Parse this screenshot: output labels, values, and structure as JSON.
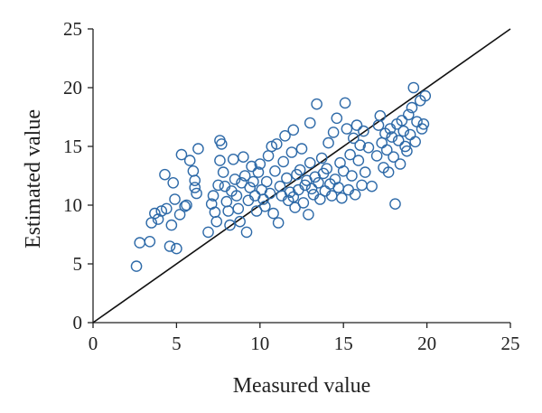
{
  "chart_data": {
    "type": "scatter",
    "title": "",
    "xlabel": "Measured value",
    "ylabel": "Estimated value",
    "xlim": [
      0,
      25
    ],
    "ylim": [
      0,
      25
    ],
    "x_ticks": [
      "0",
      "5",
      "10",
      "15",
      "20",
      "25"
    ],
    "y_ticks": [
      "0",
      "5",
      "10",
      "15",
      "20",
      "25"
    ],
    "grid": false,
    "legend": "none",
    "marker_color": "#2e6aa8",
    "reference_line": {
      "label": "",
      "from": [
        0,
        0
      ],
      "to": [
        25,
        25
      ],
      "color": "#111111"
    },
    "series": [
      {
        "name": "",
        "points": [
          [
            2.6,
            4.8
          ],
          [
            2.8,
            6.8
          ],
          [
            3.4,
            6.9
          ],
          [
            3.5,
            8.5
          ],
          [
            3.7,
            9.3
          ],
          [
            3.9,
            8.8
          ],
          [
            4.1,
            9.5
          ],
          [
            4.3,
            12.6
          ],
          [
            4.4,
            9.7
          ],
          [
            4.6,
            6.5
          ],
          [
            4.7,
            8.3
          ],
          [
            4.8,
            11.9
          ],
          [
            4.9,
            10.5
          ],
          [
            5.0,
            6.3
          ],
          [
            5.2,
            9.2
          ],
          [
            5.3,
            14.3
          ],
          [
            5.5,
            9.9
          ],
          [
            5.6,
            10.0
          ],
          [
            5.8,
            13.8
          ],
          [
            6.0,
            12.9
          ],
          [
            6.1,
            12.1
          ],
          [
            6.1,
            11.5
          ],
          [
            6.2,
            11.0
          ],
          [
            6.3,
            14.8
          ],
          [
            6.9,
            7.7
          ],
          [
            7.1,
            10.1
          ],
          [
            7.2,
            10.8
          ],
          [
            7.3,
            9.4
          ],
          [
            7.4,
            8.6
          ],
          [
            7.5,
            11.7
          ],
          [
            7.6,
            13.8
          ],
          [
            7.6,
            15.5
          ],
          [
            7.7,
            15.2
          ],
          [
            7.8,
            12.8
          ],
          [
            7.9,
            11.6
          ],
          [
            8.0,
            10.3
          ],
          [
            8.1,
            9.5
          ],
          [
            8.2,
            8.3
          ],
          [
            8.3,
            11.2
          ],
          [
            8.4,
            13.9
          ],
          [
            8.5,
            12.2
          ],
          [
            8.6,
            10.8
          ],
          [
            8.7,
            9.7
          ],
          [
            8.8,
            8.6
          ],
          [
            8.9,
            11.9
          ],
          [
            9.0,
            14.1
          ],
          [
            9.1,
            12.5
          ],
          [
            9.2,
            7.7
          ],
          [
            9.3,
            10.4
          ],
          [
            9.4,
            11.5
          ],
          [
            9.5,
            13.3
          ],
          [
            9.6,
            12.0
          ],
          [
            9.7,
            10.8
          ],
          [
            9.8,
            9.5
          ],
          [
            9.9,
            12.8
          ],
          [
            10.0,
            13.5
          ],
          [
            10.1,
            11.3
          ],
          [
            10.2,
            10.5
          ],
          [
            10.3,
            9.9
          ],
          [
            10.4,
            12.0
          ],
          [
            10.5,
            14.2
          ],
          [
            10.6,
            11.0
          ],
          [
            10.7,
            15.0
          ],
          [
            10.8,
            9.3
          ],
          [
            10.9,
            12.9
          ],
          [
            11.0,
            15.2
          ],
          [
            11.1,
            8.5
          ],
          [
            11.2,
            11.6
          ],
          [
            11.3,
            10.8
          ],
          [
            11.4,
            13.7
          ],
          [
            11.5,
            15.9
          ],
          [
            11.6,
            12.3
          ],
          [
            11.7,
            10.4
          ],
          [
            11.8,
            11.1
          ],
          [
            11.9,
            14.5
          ],
          [
            12.0,
            16.4
          ],
          [
            12.0,
            10.7
          ],
          [
            12.1,
            9.8
          ],
          [
            12.2,
            12.6
          ],
          [
            12.3,
            11.3
          ],
          [
            12.4,
            13.0
          ],
          [
            12.5,
            14.8
          ],
          [
            12.6,
            10.2
          ],
          [
            12.7,
            11.7
          ],
          [
            12.8,
            12.1
          ],
          [
            12.9,
            9.2
          ],
          [
            13.0,
            13.6
          ],
          [
            13.0,
            17.0
          ],
          [
            13.1,
            11.4
          ],
          [
            13.2,
            10.9
          ],
          [
            13.3,
            12.4
          ],
          [
            13.4,
            18.6
          ],
          [
            13.5,
            11.9
          ],
          [
            13.6,
            10.5
          ],
          [
            13.7,
            14.0
          ],
          [
            13.8,
            12.7
          ],
          [
            13.9,
            11.2
          ],
          [
            14.0,
            13.1
          ],
          [
            14.1,
            15.3
          ],
          [
            14.2,
            11.8
          ],
          [
            14.3,
            10.8
          ],
          [
            14.4,
            16.2
          ],
          [
            14.5,
            12.2
          ],
          [
            14.6,
            17.4
          ],
          [
            14.7,
            11.5
          ],
          [
            14.8,
            13.6
          ],
          [
            14.9,
            10.6
          ],
          [
            15.0,
            12.9
          ],
          [
            15.1,
            18.7
          ],
          [
            15.2,
            16.5
          ],
          [
            15.3,
            11.3
          ],
          [
            15.4,
            14.3
          ],
          [
            15.5,
            12.5
          ],
          [
            15.6,
            15.7
          ],
          [
            15.7,
            10.9
          ],
          [
            15.8,
            16.8
          ],
          [
            15.9,
            13.8
          ],
          [
            16.0,
            15.1
          ],
          [
            16.1,
            11.7
          ],
          [
            16.2,
            16.3
          ],
          [
            16.3,
            12.8
          ],
          [
            16.5,
            14.9
          ],
          [
            16.7,
            11.6
          ],
          [
            17.0,
            14.2
          ],
          [
            17.1,
            16.8
          ],
          [
            17.2,
            17.6
          ],
          [
            17.3,
            15.3
          ],
          [
            17.4,
            13.2
          ],
          [
            17.5,
            16.1
          ],
          [
            17.6,
            14.7
          ],
          [
            17.7,
            12.8
          ],
          [
            17.8,
            16.5
          ],
          [
            17.9,
            15.8
          ],
          [
            18.0,
            14.1
          ],
          [
            18.1,
            10.1
          ],
          [
            18.2,
            16.9
          ],
          [
            18.3,
            15.5
          ],
          [
            18.4,
            13.5
          ],
          [
            18.5,
            17.2
          ],
          [
            18.6,
            16.3
          ],
          [
            18.7,
            15.0
          ],
          [
            18.8,
            14.6
          ],
          [
            18.9,
            17.7
          ],
          [
            19.0,
            16.0
          ],
          [
            19.1,
            18.3
          ],
          [
            19.2,
            20.0
          ],
          [
            19.3,
            15.4
          ],
          [
            19.4,
            17.1
          ],
          [
            19.6,
            18.9
          ],
          [
            19.7,
            16.5
          ],
          [
            19.8,
            16.9
          ],
          [
            19.9,
            19.3
          ]
        ]
      }
    ]
  }
}
